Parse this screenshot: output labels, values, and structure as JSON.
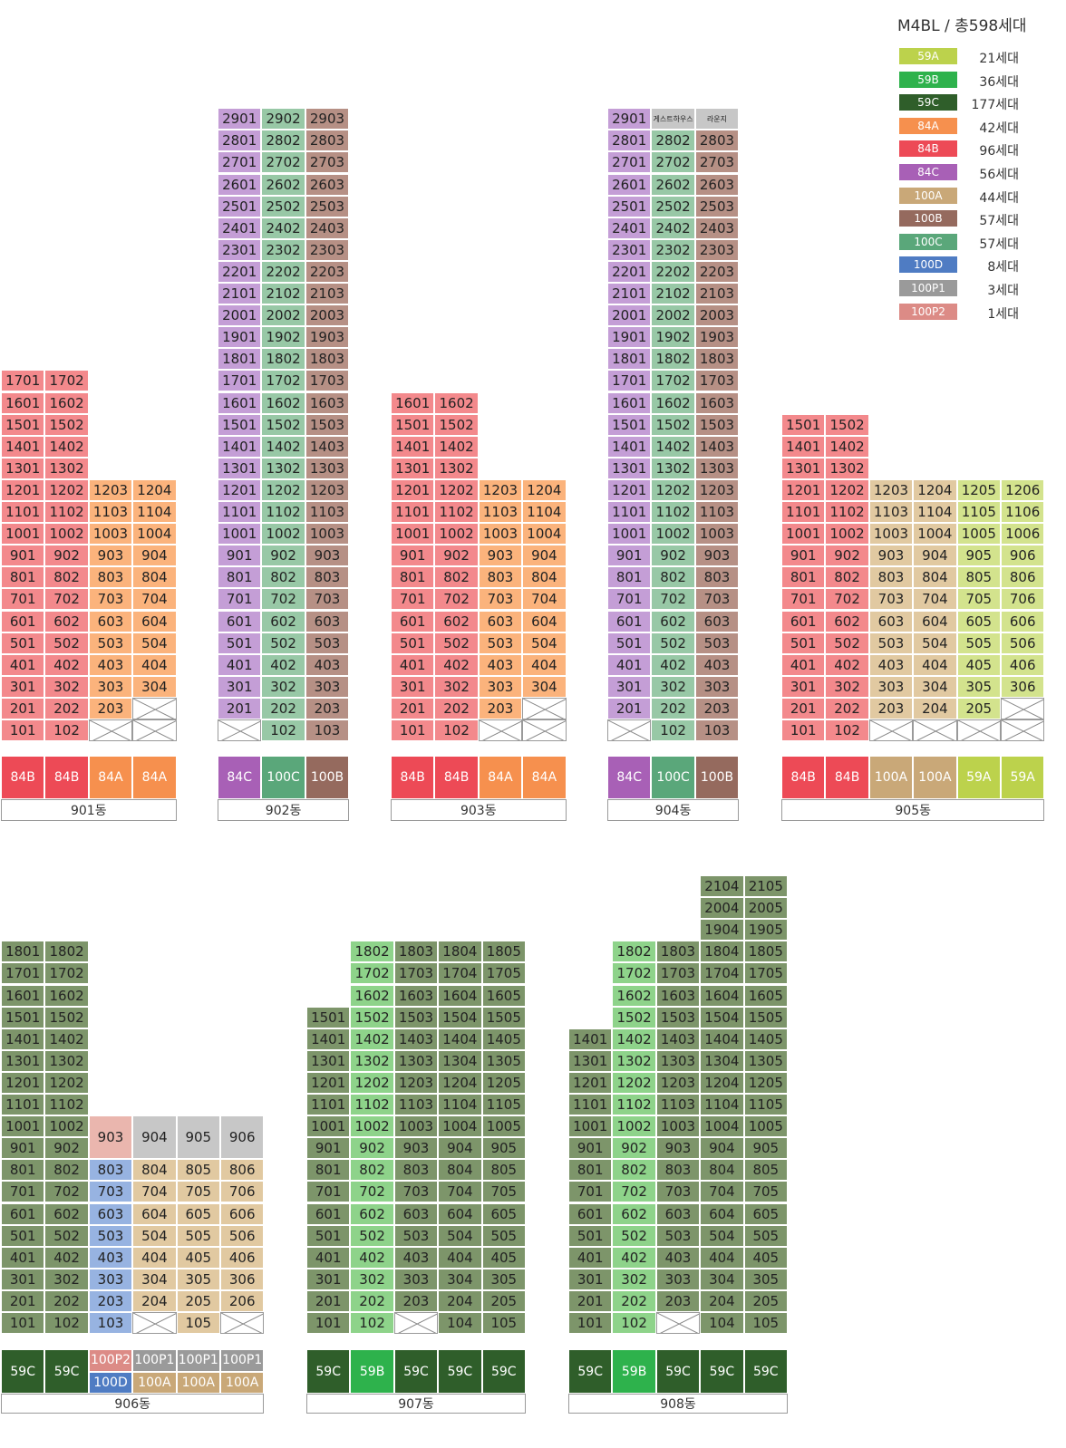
{
  "legend": {
    "title": "M4BL / 총598세대",
    "items": [
      {
        "type": "59A",
        "count": "21세대",
        "color": "#bcd24c"
      },
      {
        "type": "59B",
        "count": "36세대",
        "color": "#2eb24c"
      },
      {
        "type": "59C",
        "count": "177세대",
        "color": "#2f5e2a"
      },
      {
        "type": "84A",
        "count": "42세대",
        "color": "#f6904e"
      },
      {
        "type": "84B",
        "count": "96세대",
        "color": "#ed4a56"
      },
      {
        "type": "84C",
        "count": "56세대",
        "color": "#a860b6"
      },
      {
        "type": "100A",
        "count": "44세대",
        "color": "#c9a878"
      },
      {
        "type": "100B",
        "count": "57세대",
        "color": "#956a5e"
      },
      {
        "type": "100C",
        "count": "57세대",
        "color": "#5aa77a"
      },
      {
        "type": "100D",
        "count": "8세대",
        "color": "#4f7cc3"
      },
      {
        "type": "100P1",
        "count": "3세대",
        "color": "#9a9a9a"
      },
      {
        "type": "100P2",
        "count": "1세대",
        "color": "#dc8b86"
      }
    ]
  },
  "cell_colors": {
    "59A": "#d3e38d",
    "59B": "#8ed38a",
    "59C": "#7d956a",
    "84A": "#fbb37c",
    "84B": "#f3898c",
    "84C": "#c49ed6",
    "100A": "#e1c9a1",
    "100B": "#b69085",
    "100C": "#98c8a6",
    "100D": "#97b3e1",
    "100P1": "#c7c7c7",
    "100P2": "#eab6ae"
  },
  "buildings": [
    {
      "name": "901동",
      "cols": [
        {
          "type": "84B",
          "top": 17,
          "absent": []
        },
        {
          "type": "84B",
          "top": 17,
          "absent": []
        },
        {
          "type": "84A",
          "top": 12,
          "absent": [
            1
          ]
        },
        {
          "type": "84A",
          "top": 12,
          "absent": [
            1,
            2
          ]
        }
      ]
    },
    {
      "name": "902동",
      "cols": [
        {
          "type": "84C",
          "top": 29,
          "absent": [
            1
          ]
        },
        {
          "type": "100C",
          "top": 29,
          "absent": []
        },
        {
          "type": "100B",
          "top": 29,
          "absent": []
        }
      ]
    },
    {
      "name": "903동",
      "cols": [
        {
          "type": "84B",
          "top": 16,
          "absent": []
        },
        {
          "type": "84B",
          "top": 16,
          "absent": []
        },
        {
          "type": "84A",
          "top": 12,
          "absent": [
            1
          ]
        },
        {
          "type": "84A",
          "top": 12,
          "absent": [
            1,
            2
          ]
        }
      ]
    },
    {
      "name": "904동",
      "cols": [
        {
          "type": "84C",
          "top": 29,
          "absent": [
            1
          ]
        },
        {
          "type": "100C",
          "top": 29,
          "absent": [],
          "top_label": "게스트하우스"
        },
        {
          "type": "100B",
          "top": 29,
          "absent": [],
          "top_label": "라운지"
        }
      ]
    },
    {
      "name": "905동",
      "cols": [
        {
          "type": "84B",
          "top": 15,
          "absent": []
        },
        {
          "type": "84B",
          "top": 15,
          "absent": []
        },
        {
          "type": "100A",
          "top": 12,
          "absent": [
            1
          ]
        },
        {
          "type": "100A",
          "top": 12,
          "absent": [
            1
          ]
        },
        {
          "type": "59A",
          "top": 12,
          "absent": [
            1
          ]
        },
        {
          "type": "59A",
          "top": 12,
          "absent": [
            1,
            2
          ]
        }
      ]
    },
    {
      "name": "906동",
      "cols": [
        {
          "type": "59C",
          "top": 18,
          "absent": []
        },
        {
          "type": "59C",
          "top": 18,
          "absent": []
        },
        {
          "type": "100D",
          "top": 8,
          "absent": [],
          "top_type": "100P2"
        },
        {
          "type": "100A",
          "top": 8,
          "absent": [
            1
          ],
          "top_type": "100P1"
        },
        {
          "type": "100A",
          "top": 8,
          "absent": [],
          "top_type": "100P1"
        },
        {
          "type": "100A",
          "top": 8,
          "absent": [
            1
          ],
          "top_type": "100P1"
        }
      ]
    },
    {
      "name": "907동",
      "cols": [
        {
          "type": "59C",
          "top": 15,
          "absent": []
        },
        {
          "type": "59B",
          "top": 18,
          "absent": []
        },
        {
          "type": "59C",
          "top": 18,
          "absent": [
            1
          ]
        },
        {
          "type": "59C",
          "top": 18,
          "absent": []
        },
        {
          "type": "59C",
          "top": 18,
          "absent": []
        }
      ]
    },
    {
      "name": "908동",
      "cols": [
        {
          "type": "59C",
          "top": 14,
          "absent": []
        },
        {
          "type": "59B",
          "top": 18,
          "absent": []
        },
        {
          "type": "59C",
          "top": 18,
          "absent": [
            1
          ]
        },
        {
          "type": "59C",
          "top": 21,
          "absent": []
        },
        {
          "type": "59C",
          "top": 21,
          "absent": []
        }
      ]
    }
  ],
  "type_rows": {
    "901동": [
      "84B",
      "84B",
      "84A",
      "84A"
    ],
    "902동": [
      "84C",
      "100C",
      "100B"
    ],
    "903동": [
      "84B",
      "84B",
      "84A",
      "84A"
    ],
    "904동": [
      "84C",
      "100C",
      "100B"
    ],
    "905동": [
      "84B",
      "84B",
      "100A",
      "100A",
      "59A",
      "59A"
    ],
    "906동": [
      [
        "59C"
      ],
      [
        "59C"
      ],
      [
        "100P2",
        "100D"
      ],
      [
        "100P1",
        "100A"
      ],
      [
        "100P1",
        "100A"
      ],
      [
        "100P1",
        "100A"
      ]
    ],
    "907동": [
      "59C",
      "59B",
      "59C",
      "59C",
      "59C"
    ],
    "908동": [
      "59C",
      "59B",
      "59C",
      "59C",
      "59C"
    ]
  }
}
